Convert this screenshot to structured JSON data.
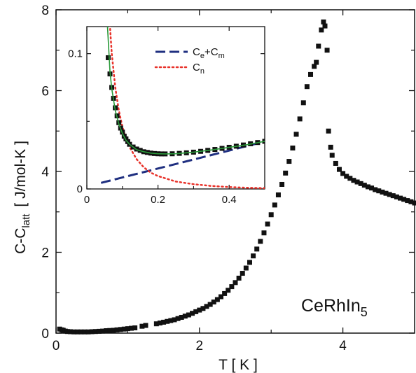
{
  "chart_data": [
    {
      "type": "scatter",
      "title": "",
      "material_label": "CeRhIn",
      "material_subscript": "5",
      "xlabel": "T [ K ]",
      "ylabel_main": "C-C",
      "ylabel_sub": "latt",
      "ylabel_units": "[ J/mol-K ]",
      "xlim": [
        0,
        5
      ],
      "ylim": [
        0,
        8
      ],
      "xticks": [
        "0",
        "2",
        "4"
      ],
      "xtick_values": [
        0,
        2,
        4
      ],
      "yticks": [
        "0",
        "2",
        "4",
        "6",
        "8"
      ],
      "ytick_values": [
        0,
        2,
        4,
        6,
        8
      ],
      "grid": false,
      "series": [
        {
          "color": "#111111",
          "marker": "square",
          "x": [
            0.05,
            0.08,
            0.1,
            0.13,
            0.16,
            0.2,
            0.25,
            0.3,
            0.35,
            0.4,
            0.45,
            0.5,
            0.55,
            0.6,
            0.65,
            0.7,
            0.75,
            0.8,
            0.85,
            0.9,
            0.95,
            1.0,
            1.05,
            1.1,
            1.2,
            1.25,
            1.4,
            1.45,
            1.5,
            1.55,
            1.6,
            1.65,
            1.7,
            1.75,
            1.8,
            1.85,
            1.9,
            1.95,
            2.0,
            2.05,
            2.1,
            2.15,
            2.2,
            2.25,
            2.3,
            2.35,
            2.4,
            2.45,
            2.5,
            2.55,
            2.6,
            2.65,
            2.7,
            2.75,
            2.8,
            2.85,
            2.9,
            2.95,
            3.0,
            3.05,
            3.1,
            3.15,
            3.2,
            3.25,
            3.3,
            3.35,
            3.4,
            3.45,
            3.5,
            3.55,
            3.6,
            3.63,
            3.66,
            3.7,
            3.73,
            3.75,
            3.78,
            3.8,
            3.83,
            3.85,
            3.9,
            3.95,
            4.0,
            4.05,
            4.1,
            4.15,
            4.2,
            4.25,
            4.3,
            4.35,
            4.4,
            4.45,
            4.5,
            4.55,
            4.6,
            4.65,
            4.7,
            4.75,
            4.8,
            4.85,
            4.9,
            4.95,
            5.0
          ],
          "y": [
            0.1,
            0.08,
            0.07,
            0.05,
            0.04,
            0.035,
            0.03,
            0.03,
            0.03,
            0.03,
            0.03,
            0.035,
            0.04,
            0.045,
            0.05,
            0.06,
            0.065,
            0.07,
            0.08,
            0.09,
            0.1,
            0.11,
            0.12,
            0.13,
            0.17,
            0.19,
            0.23,
            0.25,
            0.27,
            0.29,
            0.31,
            0.33,
            0.36,
            0.39,
            0.42,
            0.45,
            0.49,
            0.53,
            0.57,
            0.61,
            0.66,
            0.71,
            0.77,
            0.83,
            0.9,
            0.98,
            1.06,
            1.15,
            1.25,
            1.36,
            1.48,
            1.61,
            1.75,
            1.91,
            2.08,
            2.27,
            2.48,
            2.7,
            2.93,
            3.17,
            3.42,
            3.68,
            3.96,
            4.25,
            4.58,
            4.92,
            5.3,
            5.7,
            6.1,
            6.4,
            6.6,
            6.7,
            7.1,
            7.5,
            7.7,
            7.6,
            7.0,
            5.0,
            4.6,
            4.4,
            4.2,
            4.05,
            3.95,
            3.88,
            3.83,
            3.78,
            3.74,
            3.7,
            3.66,
            3.62,
            3.59,
            3.55,
            3.52,
            3.49,
            3.46,
            3.43,
            3.4,
            3.37,
            3.34,
            3.31,
            3.28,
            3.25,
            3.22
          ]
        }
      ]
    },
    {
      "type": "line",
      "inset": true,
      "xlim": [
        0,
        0.5
      ],
      "ylim": [
        0,
        0.12
      ],
      "xticks": [
        "0",
        "0.2",
        "0.4"
      ],
      "xtick_values": [
        0,
        0.2,
        0.4
      ],
      "yticks": [
        "0",
        "0.1"
      ],
      "ytick_values": [
        0,
        0.1
      ],
      "legend_position": "top-right",
      "legend": [
        {
          "main": "C",
          "sub": "e",
          "plus": "+",
          "main2": "C",
          "sub2": "m",
          "color": "#1f2f80",
          "style": "long-dash"
        },
        {
          "main": "C",
          "sub": "n",
          "color": "#e8322a",
          "style": "dotted"
        }
      ],
      "series": [
        {
          "name": "data",
          "color": "#111111",
          "marker": "square",
          "x": [
            0.06,
            0.065,
            0.07,
            0.075,
            0.08,
            0.085,
            0.09,
            0.095,
            0.1,
            0.105,
            0.11,
            0.115,
            0.12,
            0.13,
            0.14,
            0.15,
            0.16,
            0.17,
            0.18,
            0.19,
            0.2,
            0.21,
            0.22,
            0.24,
            0.26,
            0.28,
            0.3,
            0.32,
            0.34,
            0.36,
            0.38,
            0.4,
            0.42,
            0.44,
            0.46,
            0.48,
            0.5
          ],
          "y": [
            0.097,
            0.085,
            0.075,
            0.067,
            0.06,
            0.054,
            0.049,
            0.045,
            0.042,
            0.039,
            0.037,
            0.035,
            0.033,
            0.031,
            0.0295,
            0.0285,
            0.0275,
            0.027,
            0.0265,
            0.0262,
            0.026,
            0.0259,
            0.0259,
            0.026,
            0.0263,
            0.0267,
            0.0272,
            0.0278,
            0.0285,
            0.0292,
            0.03,
            0.0308,
            0.0316,
            0.0325,
            0.0334,
            0.0343,
            0.0352
          ]
        },
        {
          "name": "Ce+Cm",
          "color": "#1f2f80",
          "dash": "long",
          "x": [
            0.04,
            0.5
          ],
          "y": [
            0.0045,
            0.035
          ]
        },
        {
          "name": "Cn",
          "color": "#e8322a",
          "dash": "dotted",
          "x": [
            0.06,
            0.07,
            0.08,
            0.09,
            0.1,
            0.11,
            0.12,
            0.14,
            0.16,
            0.18,
            0.2,
            0.25,
            0.3,
            0.35,
            0.4,
            0.45,
            0.5
          ],
          "y": [
            0.14,
            0.1,
            0.075,
            0.058,
            0.046,
            0.037,
            0.031,
            0.022,
            0.016,
            0.012,
            0.0095,
            0.0055,
            0.0035,
            0.0022,
            0.0014,
            0.0009,
            0.0006
          ]
        },
        {
          "name": "fit",
          "color": "#2a9a3a",
          "x": [
            0.058,
            0.065,
            0.07,
            0.08,
            0.09,
            0.1,
            0.11,
            0.12,
            0.14,
            0.16,
            0.18,
            0.2,
            0.22,
            0.25,
            0.3,
            0.35,
            0.4,
            0.45,
            0.5
          ],
          "y": [
            0.12,
            0.087,
            0.074,
            0.058,
            0.048,
            0.041,
            0.036,
            0.033,
            0.029,
            0.0275,
            0.0265,
            0.026,
            0.0259,
            0.026,
            0.0272,
            0.0288,
            0.0307,
            0.0327,
            0.0352
          ]
        }
      ]
    }
  ]
}
